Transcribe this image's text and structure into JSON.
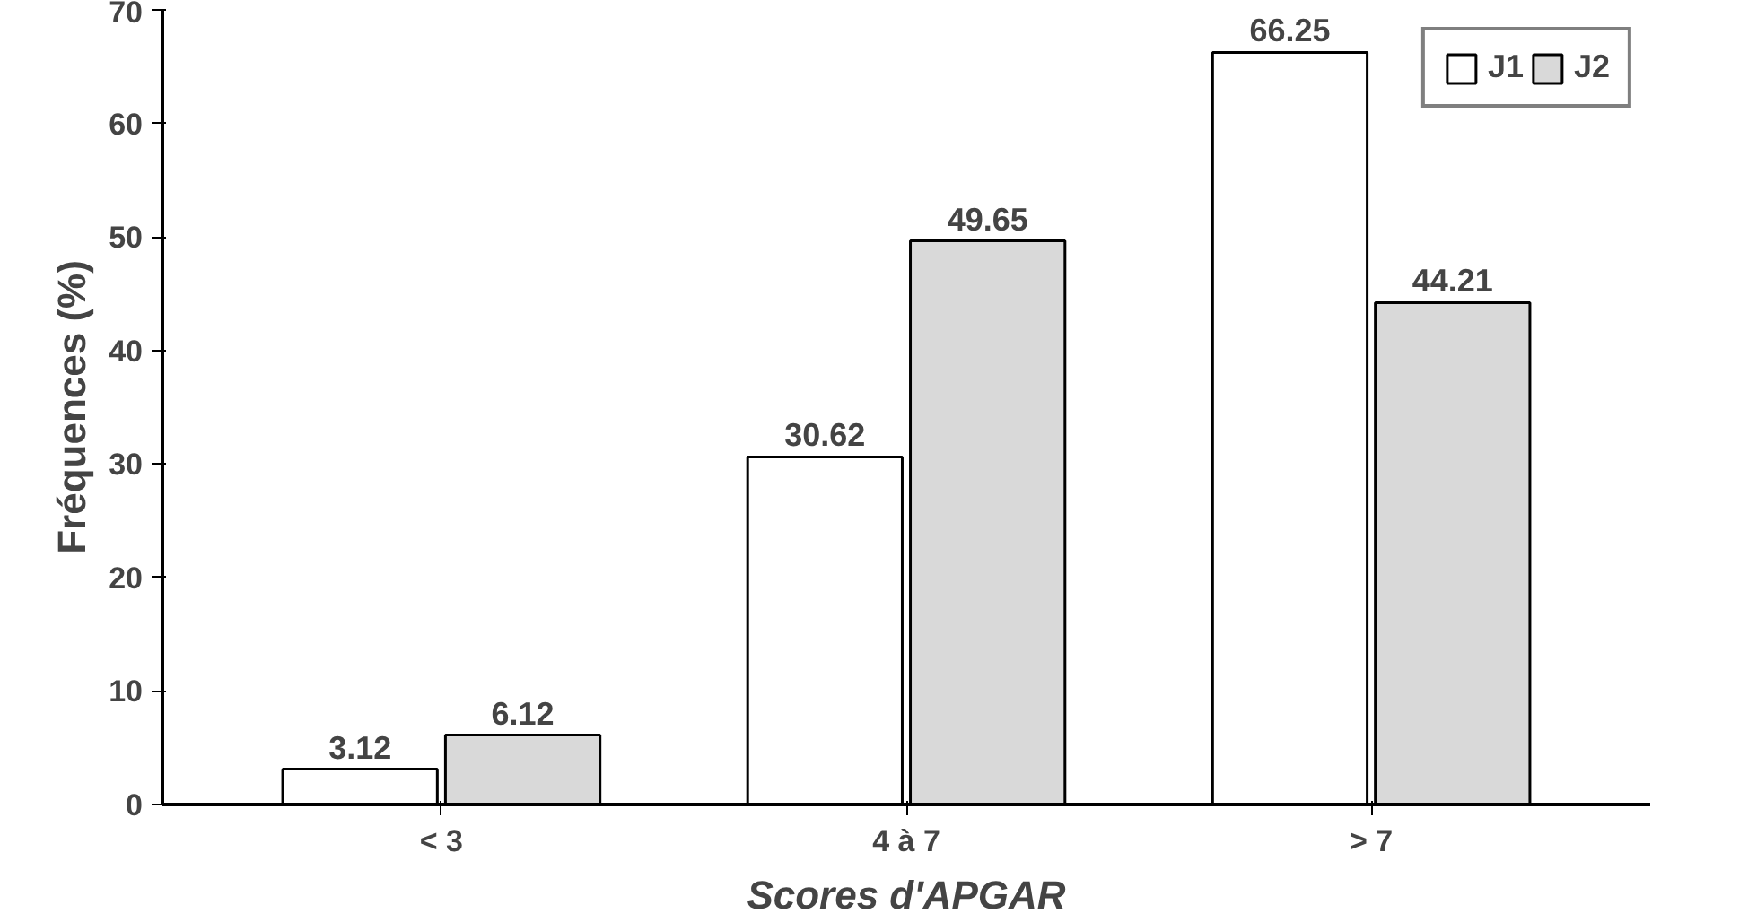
{
  "chart_data": {
    "type": "bar",
    "xlabel": "Scores d'APGAR",
    "ylabel": "Fréquences (%)",
    "categories": [
      "< 3",
      "4 à 7",
      "> 7"
    ],
    "series": [
      {
        "name": "J1",
        "color": "#ffffff",
        "values": [
          3.12,
          30.62,
          66.25
        ]
      },
      {
        "name": "J2",
        "color": "#d9d9d9",
        "values": [
          6.12,
          49.65,
          44.21
        ]
      }
    ],
    "ylim": [
      0,
      70
    ],
    "yticks": [
      0,
      10,
      20,
      30,
      40,
      50,
      60,
      70
    ],
    "data_labels": true,
    "legend": "top right",
    "grid": false
  }
}
